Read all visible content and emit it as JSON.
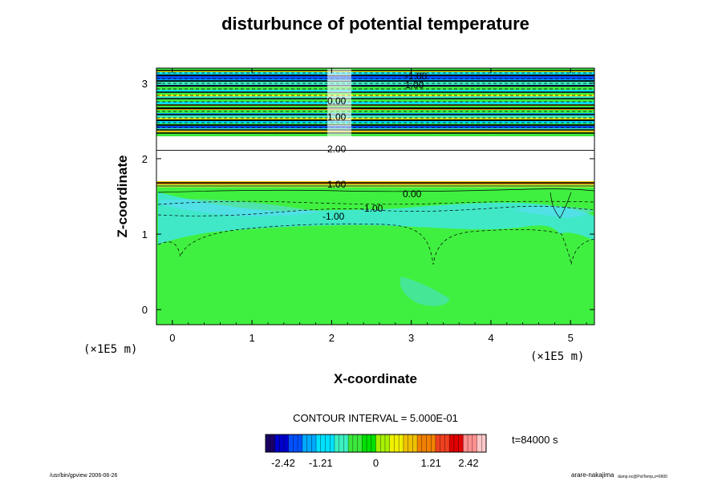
{
  "chart_data": {
    "type": "heatmap",
    "title": "disturbunce of potential temperature",
    "xlabel": "X-coordinate",
    "ylabel": "Z-coordinate",
    "x_unit": "(×1E5 m)",
    "z_unit": "(×1E5 m)",
    "xlim": [
      -0.2,
      5.3
    ],
    "ylim": [
      -0.2,
      3.2
    ],
    "x_ticks": [
      "0",
      "1",
      "2",
      "3",
      "4",
      "5"
    ],
    "y_ticks": [
      "0",
      "1",
      "2",
      "3"
    ],
    "contour_interval_label": "CONTOUR INTERVAL = 5.000E-01",
    "time_label": "t=84000 s",
    "colorbar": {
      "min": -2.42,
      "max": 2.42,
      "tick_labels": [
        "-2.42",
        "-1.21",
        "0",
        "1.21",
        "2.42"
      ],
      "colors": [
        "#1a0066",
        "#0000cc",
        "#0050ff",
        "#00a8ff",
        "#00e0ff",
        "#3cf0c0",
        "#3ce83c",
        "#00e000",
        "#a8f000",
        "#f0f000",
        "#f0c000",
        "#f08000",
        "#f04020",
        "#e00000",
        "#ff9090",
        "#ffc8c8"
      ]
    },
    "contour_labels": [
      {
        "text": "0.00"
      },
      {
        "text": "-1.00"
      },
      {
        "text": "-1.00"
      },
      {
        "text": "1.00"
      },
      {
        "text": "1.00"
      },
      {
        "text": "-1.00"
      },
      {
        "text": "1.00"
      },
      {
        "text": "0.00"
      },
      {
        "text": "2.00"
      }
    ]
  },
  "footer": {
    "left": "/usr/bin/gpview 2006-06-26",
    "right_main": "arare-nakajima",
    "right_sub": "dump.nc@PotTemp,z=0600"
  }
}
